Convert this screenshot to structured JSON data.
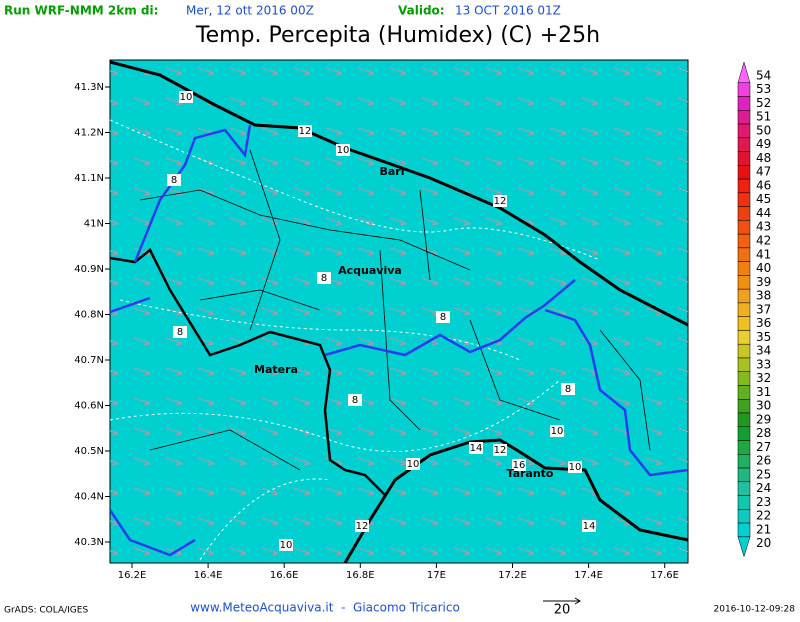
{
  "header": {
    "run_label": "Run WRF-NMM 2km di:",
    "run_date": "Mer, 12 ott 2016 00Z",
    "valid_label": "Valido:",
    "valid_date": "13 OCT 2016 01Z",
    "title": "Temp. Percepita (Humidex) (C) +25h"
  },
  "map": {
    "lon_labels": [
      "16.2E",
      "16.4E",
      "16.6E",
      "16.8E",
      "17E",
      "17.2E",
      "17.4E",
      "17.6E"
    ],
    "lat_labels": [
      "41.3N",
      "41.2N",
      "41.1N",
      "41N",
      "40.9N",
      "40.8N",
      "40.7N",
      "40.6N",
      "40.5N",
      "40.4N",
      "40.3N"
    ],
    "places": [
      "Bari",
      "Acquaviva",
      "Matera",
      "Taranto"
    ],
    "contour_labels": [
      10,
      12,
      10,
      8,
      12,
      8,
      8,
      8,
      8,
      8,
      10,
      14,
      12,
      16,
      10,
      10,
      12,
      14,
      10
    ]
  },
  "colorbar": {
    "levels": [
      54,
      53,
      52,
      51,
      50,
      49,
      48,
      47,
      46,
      45,
      44,
      43,
      42,
      41,
      40,
      39,
      38,
      37,
      36,
      35,
      34,
      33,
      32,
      31,
      30,
      29,
      28,
      27,
      26,
      25,
      24,
      23,
      22,
      21,
      20
    ],
    "colors": [
      "#ff66ff",
      "#f040e0",
      "#e020c0",
      "#e01a90",
      "#e01870",
      "#e01850",
      "#e01430",
      "#e81010",
      "#f02010",
      "#f03010",
      "#f04010",
      "#f05010",
      "#f06010",
      "#f07010",
      "#f08010",
      "#f09010",
      "#f0a020",
      "#f0b020",
      "#f0c020",
      "#e8d030",
      "#c8c820",
      "#a8c020",
      "#88b820",
      "#60b020",
      "#40a020",
      "#209820",
      "#10a030",
      "#20a840",
      "#20b060",
      "#20b880",
      "#20c0a0",
      "#10c8b0",
      "#10c8c0",
      "#00d0d0",
      "#00d0d0"
    ]
  },
  "footer": {
    "software": "GrADS: COLA/IGES",
    "credit": "www.MeteoAcquaviva.it  -  Giacomo Tricarico",
    "vector_scale": "20",
    "timestamp": "2016-10-12-09:28"
  }
}
